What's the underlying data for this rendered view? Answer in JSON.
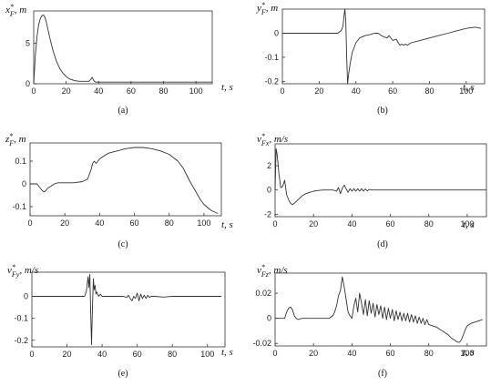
{
  "chart_data": [
    {
      "id": "a",
      "type": "line",
      "caption": "(a)",
      "ylabel": "x*F, m",
      "xlabel": "t, s",
      "xlim": [
        0,
        110
      ],
      "ylim": [
        0,
        9
      ],
      "xticks": [
        0,
        20,
        40,
        60,
        80,
        100
      ],
      "yticks": [
        0,
        5
      ],
      "series": [
        {
          "x": [
            0,
            1,
            2,
            3,
            4,
            5,
            6,
            7,
            8,
            10,
            12,
            14,
            16,
            18,
            20,
            22,
            25,
            28,
            30,
            32,
            34,
            35,
            36,
            37,
            38,
            40,
            50,
            60,
            80,
            100,
            110
          ],
          "y": [
            0,
            3.5,
            5.8,
            7.2,
            8.0,
            8.4,
            8.5,
            8.2,
            7.4,
            5.6,
            4.0,
            2.8,
            1.9,
            1.3,
            0.9,
            0.6,
            0.4,
            0.3,
            0.3,
            0.3,
            0.3,
            0.5,
            0.8,
            0.4,
            0.2,
            0.2,
            0.2,
            0.2,
            0.2,
            0.2,
            0.2
          ]
        }
      ]
    },
    {
      "id": "b",
      "type": "line",
      "caption": "(b)",
      "ylabel": "y*F, m",
      "xlabel": "t, s",
      "xlim": [
        0,
        110
      ],
      "ylim": [
        -0.21,
        0.1
      ],
      "xticks": [
        0,
        20,
        40,
        60,
        80,
        100
      ],
      "yticks": [
        0,
        -0.1,
        -0.2
      ],
      "series": [
        {
          "x": [
            0,
            30,
            32,
            33,
            33.5,
            34,
            34.5,
            35,
            35.5,
            36,
            37,
            38,
            40,
            42,
            45,
            48,
            50,
            52,
            54,
            55,
            57,
            58,
            60,
            62,
            63,
            64,
            65,
            66,
            67,
            68,
            70,
            75,
            80,
            85,
            90,
            95,
            100,
            105,
            108
          ],
          "y": [
            0,
            0,
            0.01,
            0.03,
            0.07,
            0.1,
            0.05,
            -0.1,
            -0.21,
            -0.17,
            -0.12,
            -0.08,
            -0.04,
            -0.02,
            -0.01,
            -0.005,
            0,
            0,
            -0.01,
            -0.015,
            -0.02,
            -0.01,
            -0.03,
            -0.025,
            -0.04,
            -0.05,
            -0.045,
            -0.05,
            -0.045,
            -0.05,
            -0.04,
            -0.03,
            -0.02,
            -0.01,
            0,
            0.01,
            0.02,
            0.025,
            0.02
          ]
        }
      ]
    },
    {
      "id": "c",
      "type": "line",
      "caption": "(c)",
      "ylabel": "z*F, m",
      "xlabel": "t, s",
      "xlim": [
        0,
        110
      ],
      "ylim": [
        -0.14,
        0.18
      ],
      "xticks": [
        0,
        20,
        40,
        60,
        80,
        100
      ],
      "yticks": [
        0.1,
        0,
        -0.1
      ],
      "series": [
        {
          "x": [
            0,
            4,
            5,
            6,
            7,
            8,
            9,
            10,
            12,
            14,
            16,
            18,
            20,
            25,
            30,
            33,
            35,
            36,
            37,
            38,
            39,
            40,
            42,
            45,
            50,
            55,
            60,
            65,
            70,
            75,
            80,
            85,
            88,
            90,
            92,
            95,
            98,
            100,
            103,
            105,
            108
          ],
          "y": [
            0,
            0,
            -0.01,
            -0.02,
            -0.03,
            -0.035,
            -0.03,
            -0.02,
            -0.01,
            0,
            0.005,
            0.005,
            0.005,
            0.005,
            0.01,
            0.02,
            0.06,
            0.09,
            0.1,
            0.09,
            0.1,
            0.11,
            0.12,
            0.135,
            0.145,
            0.155,
            0.16,
            0.16,
            0.155,
            0.145,
            0.13,
            0.1,
            0.07,
            0.04,
            0.01,
            -0.03,
            -0.07,
            -0.09,
            -0.11,
            -0.12,
            -0.13
          ]
        }
      ]
    },
    {
      "id": "d",
      "type": "line",
      "caption": "(d)",
      "ylabel": "v*Fx, m/s",
      "xlabel": "t, s",
      "xlim": [
        0,
        110
      ],
      "ylim": [
        -2.2,
        3.8
      ],
      "xticks": [
        0,
        20,
        40,
        60,
        80,
        100
      ],
      "yticks": [
        2,
        0,
        -2
      ],
      "series": [
        {
          "x": [
            0,
            0.5,
            1,
            1.5,
            2,
            3,
            4,
            5,
            6,
            7,
            8,
            9,
            10,
            12,
            14,
            16,
            18,
            20,
            22,
            25,
            28,
            30,
            32,
            33,
            34,
            35,
            36,
            37,
            38,
            39,
            40,
            41,
            42,
            43,
            44,
            45,
            46,
            47,
            48,
            49,
            50,
            52,
            60,
            80,
            100,
            110
          ],
          "y": [
            0,
            3.4,
            3.0,
            2.2,
            1.3,
            0.2,
            0.3,
            0.8,
            -0.4,
            -0.8,
            -1.1,
            -1.2,
            -1.1,
            -0.8,
            -0.5,
            -0.3,
            -0.2,
            -0.1,
            -0.05,
            0,
            0,
            0,
            -0.1,
            0.2,
            -0.3,
            0.15,
            0.4,
            0.1,
            -0.2,
            0.1,
            -0.1,
            0.1,
            -0.1,
            0.1,
            -0.1,
            0.1,
            -0.1,
            0.08,
            -0.08,
            0.05,
            0,
            0,
            0,
            0,
            0,
            0
          ]
        }
      ]
    },
    {
      "id": "e",
      "type": "line",
      "caption": "(e)",
      "ylabel": "v*Fy, m/s",
      "xlabel": "t, s",
      "xlim": [
        0,
        110
      ],
      "ylim": [
        -0.23,
        0.11
      ],
      "xticks": [
        0,
        20,
        40,
        60,
        80,
        100
      ],
      "yticks": [
        0,
        -0.1,
        -0.2
      ],
      "series": [
        {
          "x": [
            0,
            30,
            31,
            32,
            32.5,
            33,
            33.5,
            34,
            34.5,
            35,
            35.5,
            36,
            36.5,
            37,
            38,
            39,
            40,
            42,
            45,
            48,
            50,
            52,
            54,
            55,
            56,
            57,
            58,
            59,
            60,
            61,
            62,
            63,
            64,
            65,
            66,
            67,
            68,
            70,
            75,
            80,
            90,
            100,
            108
          ],
          "y": [
            0,
            0,
            0.02,
            0.09,
            0.04,
            0.1,
            -0.08,
            -0.22,
            -0.05,
            0.08,
            0.03,
            0.05,
            0.01,
            0.02,
            0.0,
            0.01,
            0.0,
            0,
            0,
            0,
            0,
            0,
            -0.005,
            0.005,
            -0.01,
            -0.02,
            0.0,
            -0.01,
            0.015,
            -0.02,
            0.01,
            -0.01,
            0.005,
            -0.01,
            0.005,
            -0.005,
            0,
            0,
            -0.003,
            0,
            0,
            0,
            0
          ]
        }
      ]
    },
    {
      "id": "f",
      "type": "line",
      "caption": "(f)",
      "ylabel": "v*Fz, m/s",
      "xlabel": "t, s",
      "xlim": [
        0,
        110
      ],
      "ylim": [
        -0.022,
        0.036
      ],
      "xticks": [
        0,
        20,
        40,
        60,
        80,
        100
      ],
      "yticks": [
        0.02,
        0,
        -0.02
      ],
      "series": [
        {
          "x": [
            0,
            3,
            5,
            6,
            7,
            8,
            9,
            10,
            11,
            12,
            14,
            16,
            18,
            20,
            22,
            25,
            28,
            30,
            31,
            32,
            33,
            34,
            35,
            36,
            37,
            38,
            39,
            40,
            41,
            42,
            43,
            44,
            45,
            46,
            47,
            48,
            49,
            50,
            51,
            52,
            53,
            54,
            55,
            56,
            57,
            58,
            59,
            60,
            61,
            62,
            63,
            64,
            65,
            66,
            67,
            68,
            69,
            70,
            71,
            72,
            73,
            74,
            75,
            76,
            77,
            78,
            79,
            80,
            82,
            84,
            86,
            88,
            90,
            92,
            94,
            95,
            96,
            97,
            98,
            99,
            100,
            102,
            104,
            106,
            108
          ],
          "y": [
            0,
            0,
            0,
            0.005,
            0.008,
            0.009,
            0.007,
            0.002,
            0,
            -0.001,
            0,
            0,
            0,
            0,
            0,
            0,
            0,
            0.002,
            0.005,
            0.01,
            0.018,
            0.022,
            0.033,
            0.025,
            0.015,
            0.005,
            0.002,
            0.0,
            0.01,
            0.016,
            0.005,
            0.02,
            0.012,
            0.003,
            0.015,
            0.002,
            0.014,
            0.004,
            0.012,
            0.001,
            0.011,
            0.003,
            0.01,
            0.0,
            0.009,
            -0.001,
            0.008,
            0.0,
            0.007,
            -0.002,
            0.006,
            -0.001,
            0.005,
            -0.002,
            0.004,
            -0.002,
            0.004,
            -0.003,
            0.003,
            -0.003,
            0.002,
            -0.004,
            0.001,
            -0.004,
            0.0,
            -0.005,
            -0.001,
            -0.005,
            -0.006,
            -0.007,
            -0.009,
            -0.011,
            -0.013,
            -0.016,
            -0.018,
            -0.019,
            -0.019,
            -0.017,
            -0.013,
            -0.009,
            -0.006,
            -0.004,
            -0.003,
            -0.002,
            -0.001
          ]
        }
      ]
    }
  ]
}
